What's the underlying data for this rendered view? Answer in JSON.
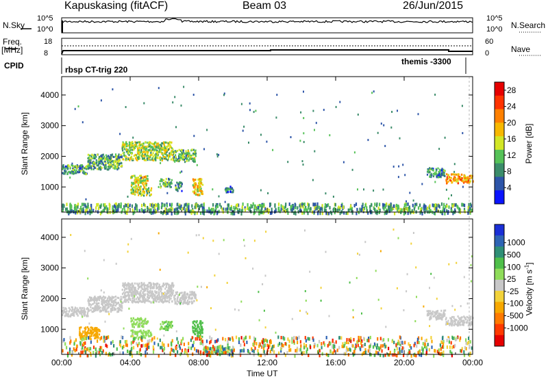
{
  "header": {
    "station": "Kapuskasing (fitACF)",
    "beam": "Beam 03",
    "date": "26/Jun/2015"
  },
  "strip_nsky": {
    "label": "N.Sky",
    "ticks_left": [
      "10^5",
      "10^0"
    ],
    "ticks_right": [
      "10^5",
      "10^0"
    ],
    "right_label": "N.Search"
  },
  "strip_freq": {
    "label_top": "Freq.",
    "label_unit": "[MHz]",
    "ticks_left": [
      "18",
      "8"
    ],
    "ticks_right": [
      "60",
      "0"
    ],
    "right_label": "Nave"
  },
  "cpid": {
    "label": "CPID",
    "segments": [
      "rbsp CT-trig 220",
      "themis -3300"
    ]
  },
  "x_axis": {
    "ticks": [
      "00:00",
      "04:00",
      "08:00",
      "12:00",
      "16:00",
      "20:00",
      "00:00"
    ],
    "label": "Time UT",
    "range_hours": [
      0,
      24
    ]
  },
  "chart_data": [
    {
      "type": "heatmap",
      "panel": "power",
      "ylabel": "Slant Range [km]",
      "yticks": [
        "1000",
        "2000",
        "3000",
        "4000"
      ],
      "ylim": [
        180,
        4600
      ],
      "colorbar": {
        "label": "Power [dB]",
        "ticks": [
          "4",
          "8",
          "12",
          "16",
          "20",
          "24",
          "28"
        ],
        "range": [
          0,
          30
        ],
        "colors": [
          "#0a14ff",
          "#2d55a8",
          "#3b8c6a",
          "#56c258",
          "#d2e626",
          "#f7b800",
          "#ff8000",
          "#ff3300",
          "#e60000"
        ]
      },
      "regions": [
        {
          "t0": 0.0,
          "t1": 1.5,
          "r0": 1450,
          "r1": 1750,
          "value": 9
        },
        {
          "t0": 1.5,
          "t1": 3.5,
          "r0": 1600,
          "r1": 2100,
          "value": 10
        },
        {
          "t0": 3.5,
          "t1": 6.5,
          "r0": 1900,
          "r1": 2500,
          "value": 14
        },
        {
          "t0": 6.5,
          "t1": 7.8,
          "r0": 1850,
          "r1": 2250,
          "value": 12
        },
        {
          "t0": 4.0,
          "t1": 5.0,
          "r0": 1000,
          "r1": 1400,
          "value": 16
        },
        {
          "t0": 4.0,
          "t1": 5.2,
          "r0": 750,
          "r1": 1000,
          "value": 14
        },
        {
          "t0": 5.7,
          "t1": 6.4,
          "r0": 1000,
          "r1": 1300,
          "value": 11
        },
        {
          "t0": 6.6,
          "t1": 7.0,
          "r0": 900,
          "r1": 1200,
          "value": 9
        },
        {
          "t0": 7.6,
          "t1": 8.2,
          "r0": 750,
          "r1": 1300,
          "value": 17
        },
        {
          "t0": 9.5,
          "t1": 10.0,
          "r0": 850,
          "r1": 1050,
          "value": 7
        },
        {
          "t0": 21.3,
          "t1": 22.4,
          "r0": 1350,
          "r1": 1650,
          "value": 8
        },
        {
          "t0": 22.4,
          "t1": 24.0,
          "r0": 1150,
          "r1": 1450,
          "value": 20
        },
        {
          "t0": 0.0,
          "t1": 24.0,
          "r0": 180,
          "r1": 500,
          "value": 10
        }
      ]
    },
    {
      "type": "heatmap",
      "panel": "velocity",
      "ylabel": "Slant Range [km]",
      "yticks": [
        "1000",
        "2000",
        "3000",
        "4000"
      ],
      "ylim": [
        180,
        4600
      ],
      "colorbar": {
        "label": "Velocity [m s^-1]",
        "ticks": [
          "1000",
          "500",
          "100",
          "25",
          "-25",
          "-100",
          "-500",
          "-1000"
        ],
        "range": [
          -1200,
          1200
        ],
        "colors": [
          "#1a2fd6",
          "#2e64b4",
          "#2f8f76",
          "#4fbf4a",
          "#8fdc5a",
          "#c8c8c8",
          "#f2d23a",
          "#f7a800",
          "#ff7a00",
          "#ff3a00",
          "#e60000"
        ]
      },
      "regions": [
        {
          "t0": 0.0,
          "t1": 1.5,
          "r0": 1450,
          "r1": 1750,
          "value": 0
        },
        {
          "t0": 1.5,
          "t1": 3.5,
          "r0": 1600,
          "r1": 2100,
          "value": 0
        },
        {
          "t0": 3.5,
          "t1": 6.5,
          "r0": 1900,
          "r1": 2550,
          "value": 0
        },
        {
          "t0": 6.5,
          "t1": 7.8,
          "r0": 1850,
          "r1": 2250,
          "value": 0
        },
        {
          "t0": 4.0,
          "t1": 5.0,
          "r0": 1100,
          "r1": 1400,
          "value": 150
        },
        {
          "t0": 4.0,
          "t1": 5.2,
          "r0": 750,
          "r1": 1000,
          "value": 250
        },
        {
          "t0": 5.7,
          "t1": 6.4,
          "r0": 1000,
          "r1": 1300,
          "value": 300
        },
        {
          "t0": 7.6,
          "t1": 8.2,
          "r0": 750,
          "r1": 1300,
          "value": 400
        },
        {
          "t0": 1.0,
          "t1": 2.2,
          "r0": 700,
          "r1": 1100,
          "value": -400
        },
        {
          "t0": 21.3,
          "t1": 22.4,
          "r0": 1350,
          "r1": 1650,
          "value": 0
        },
        {
          "t0": 22.4,
          "t1": 24.0,
          "r0": 1150,
          "r1": 1450,
          "value": 0
        },
        {
          "t0": 8.2,
          "t1": 10.0,
          "r0": 200,
          "r1": 450,
          "value": 150
        },
        {
          "t0": 0.0,
          "t1": 24.0,
          "r0": 180,
          "r1": 800,
          "value": -50
        }
      ]
    }
  ]
}
